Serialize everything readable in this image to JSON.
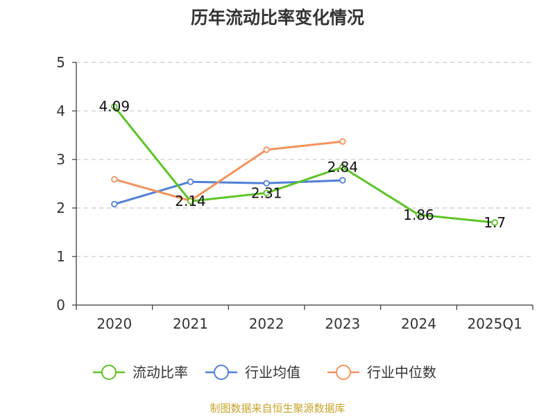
{
  "chart_data": {
    "type": "line",
    "title": "历年流动比率变化情况",
    "categories": [
      "2020",
      "2021",
      "2022",
      "2023",
      "2024",
      "2025Q1"
    ],
    "ylim": [
      0,
      5
    ],
    "yticks": [
      "0",
      "1",
      "2",
      "3",
      "4",
      "5"
    ],
    "grid": "horizontal dashed",
    "legend_position": "bottom",
    "series": [
      {
        "name": "流动比率",
        "color": "#5cc425",
        "values": [
          4.09,
          2.14,
          2.31,
          2.84,
          1.86,
          1.7
        ],
        "labels": [
          "4.09",
          "2.14",
          "2.31",
          "2.84",
          "1.86",
          "1.7"
        ]
      },
      {
        "name": "行业均值",
        "color": "#4f7fd6",
        "values": [
          2.08,
          2.54,
          2.51,
          2.57,
          null,
          null
        ]
      },
      {
        "name": "行业中位数",
        "color": "#f4925a",
        "values": [
          2.59,
          2.15,
          3.2,
          3.37,
          null,
          null
        ]
      }
    ]
  },
  "source": "制图数据来自恒生聚源数据库"
}
